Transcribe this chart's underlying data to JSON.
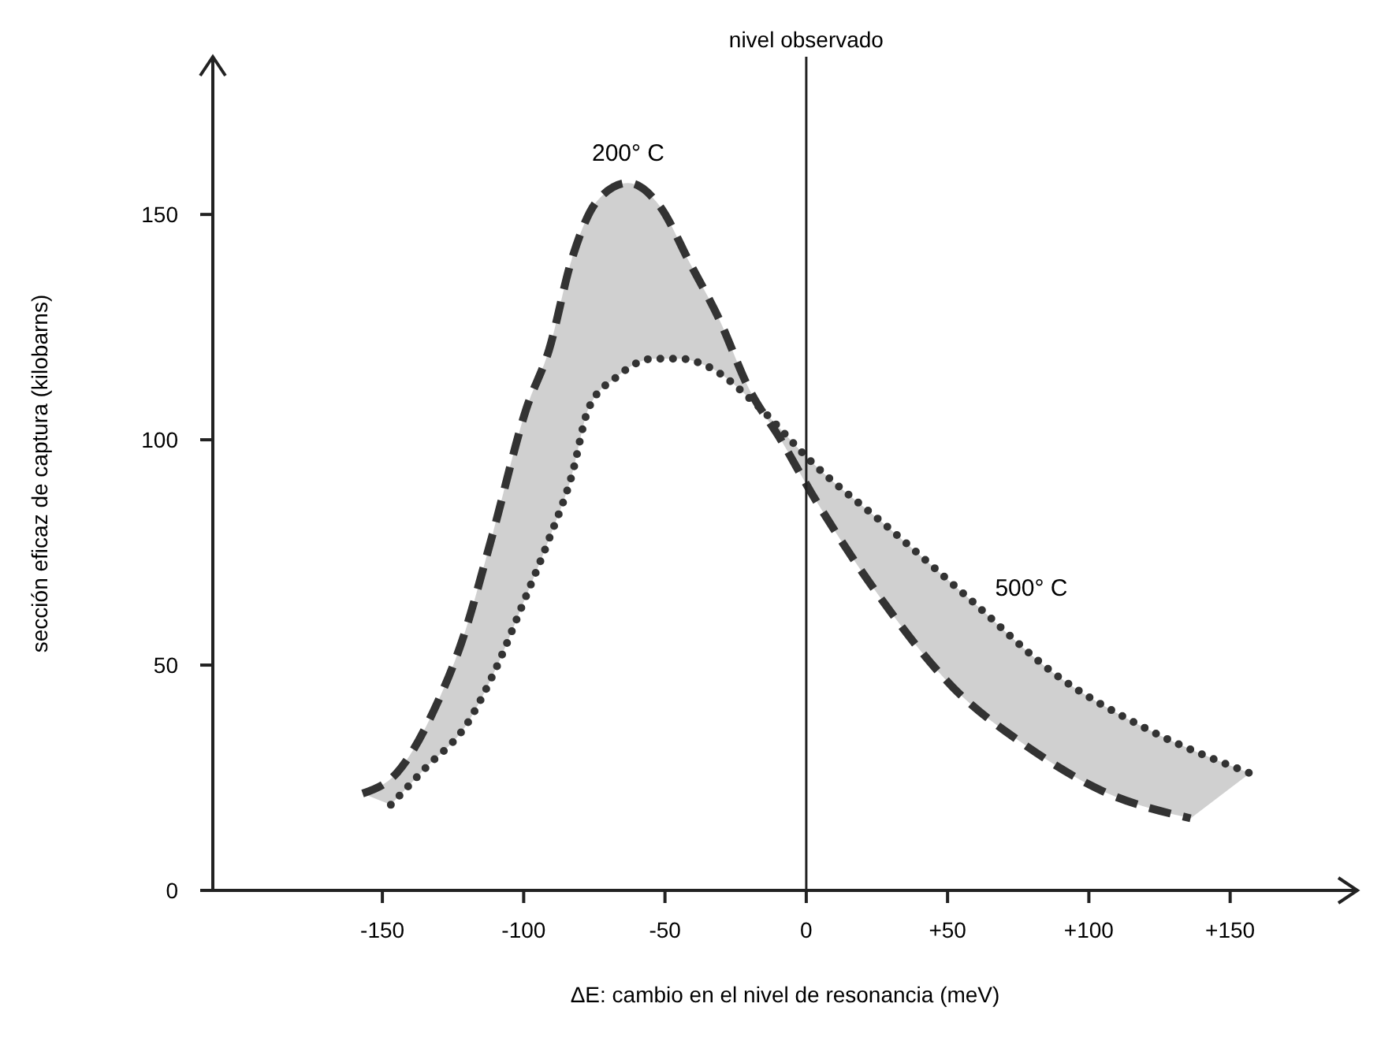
{
  "chart_data": {
    "type": "line",
    "xlabel": "ΔE: cambio en el nivel de resonancia (meV)",
    "ylabel": "sección eficaz de captura (kilobarns)",
    "xlim": [
      -210,
      195
    ],
    "ylim": [
      0,
      185
    ],
    "xticks": [
      -150,
      -100,
      -50,
      0,
      {
        "value": 50,
        "label": "+50"
      },
      {
        "value": 100,
        "label": "+100"
      },
      {
        "value": 150,
        "label": "+150"
      }
    ],
    "yticks": [
      0,
      50,
      100,
      150
    ],
    "grid": false,
    "marker": "none",
    "series": [
      {
        "name": "200° C",
        "color": "#333333",
        "line_style": "dashed",
        "x": [
          -157,
          -145,
          -131,
          -122,
          -111,
          -99,
          -91,
          -83,
          -74,
          -63,
          -52,
          -41,
          -31,
          -20,
          -9,
          2,
          25,
          52,
          78,
          105,
          136
        ],
        "values": [
          21.5,
          26,
          41,
          55,
          79,
          107,
          120,
          140,
          153,
          157,
          152,
          139,
          127,
          111,
          100,
          88,
          66,
          45,
          32,
          22,
          16
        ]
      },
      {
        "name": "500° C",
        "color": "#333333",
        "line_style": "dotted",
        "x": [
          -147,
          -135,
          -120,
          -110,
          -100,
          -91,
          -83,
          -77,
          -67,
          -54,
          -45,
          -34,
          -18,
          2,
          30,
          59,
          88,
          120,
          157
        ],
        "values": [
          19,
          27,
          37,
          49,
          64,
          78,
          92,
          107,
          114,
          118,
          118,
          116,
          108,
          95,
          80,
          64,
          48,
          36,
          26
        ]
      }
    ],
    "ref_lines": [
      {
        "axis": "x",
        "value": 0,
        "label": "nivel observado",
        "color": "#222222",
        "line_style": "solid"
      }
    ]
  }
}
